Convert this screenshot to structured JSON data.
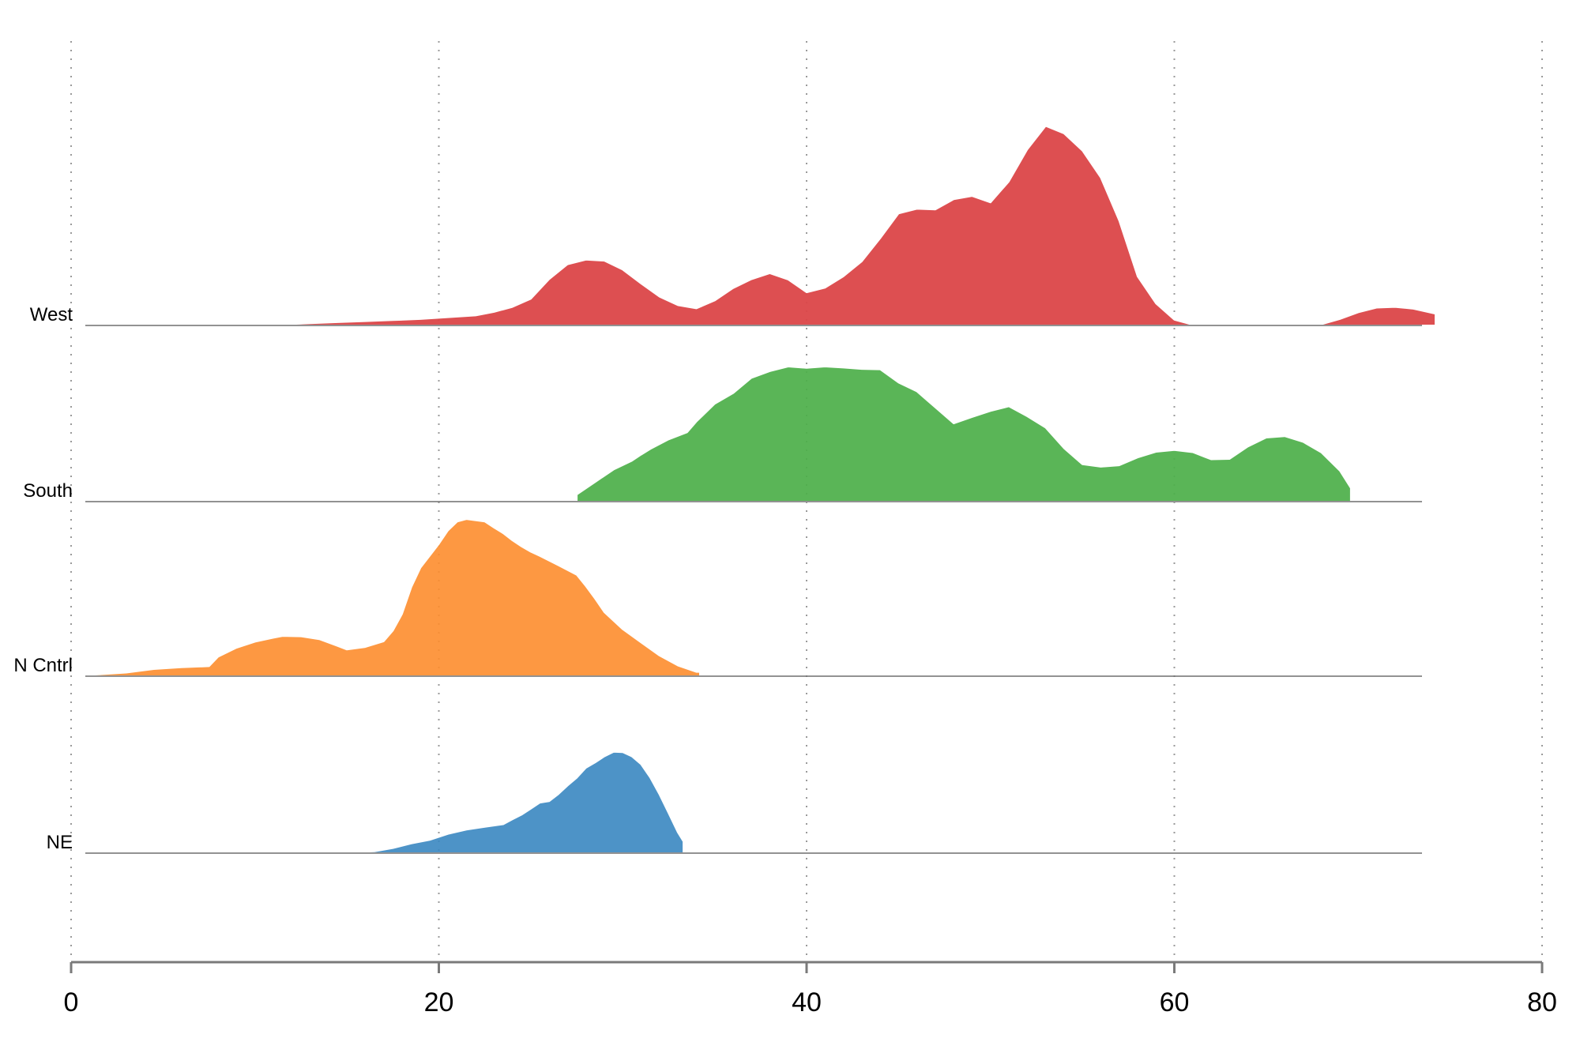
{
  "chart_data": {
    "type": "area",
    "subtype": "ridgeline",
    "title": "",
    "xlabel": "",
    "ylabel": "",
    "xlim": [
      0,
      80
    ],
    "xticks": [
      0,
      20,
      40,
      60,
      80
    ],
    "grid": {
      "x": true,
      "style": "dotted"
    },
    "legend": "none",
    "series": [
      {
        "name": "NE",
        "color": "#3a87c1",
        "opacity": 0.9,
        "x": [
          15,
          16.5,
          17.5,
          18.5,
          19.5,
          20.5,
          21.5,
          22.5,
          23.5,
          24,
          24.5,
          25,
          25.5,
          26,
          26.5,
          27,
          27.5,
          28,
          28.5,
          29,
          29.5,
          30,
          30.5,
          31,
          31.5,
          32,
          32.5,
          33,
          33.3,
          33.3
        ],
        "y": [
          0.02,
          0.05,
          0.14,
          0.27,
          0.37,
          0.54,
          0.66,
          0.74,
          0.81,
          0.95,
          1.08,
          1.25,
          1.42,
          1.46,
          1.66,
          1.9,
          2.12,
          2.4,
          2.55,
          2.72,
          2.85,
          2.84,
          2.72,
          2.5,
          2.12,
          1.65,
          1.12,
          0.58,
          0.33,
          0
        ]
      },
      {
        "name": "N Cntrl",
        "color": "#fd8d2e",
        "opacity": 0.9,
        "x": [
          0.5,
          1.5,
          3,
          4.5,
          6,
          7.5,
          8,
          9,
          10,
          11,
          11.5,
          12.5,
          13.5,
          14.5,
          15,
          16,
          17,
          17.5,
          18,
          18.5,
          19,
          20,
          20.5,
          21,
          21.5,
          22.5,
          23,
          23.5,
          24,
          24.5,
          25,
          25.5,
          26.5,
          27.5,
          28,
          28.5,
          29,
          30,
          31,
          32,
          33,
          34,
          34.2,
          34.2
        ],
        "y": [
          0.02,
          0.05,
          0.1,
          0.2,
          0.25,
          0.28,
          0.55,
          0.8,
          0.97,
          1.08,
          1.13,
          1.12,
          1.04,
          0.85,
          0.75,
          0.82,
          0.98,
          1.28,
          1.75,
          2.5,
          3.05,
          3.72,
          4.1,
          4.35,
          4.42,
          4.35,
          4.18,
          4.02,
          3.82,
          3.65,
          3.5,
          3.38,
          3.12,
          2.85,
          2.53,
          2.18,
          1.8,
          1.32,
          0.95,
          0.58,
          0.3,
          0.12,
          0.12,
          0
        ]
      },
      {
        "name": "South",
        "color": "#4daf4a",
        "opacity": 0.93,
        "x": [
          27.5,
          28.5,
          29.5,
          30.5,
          31,
          31.5,
          32.5,
          33.5,
          34,
          35,
          36,
          37,
          38,
          39,
          40,
          41,
          42,
          43,
          44,
          45,
          46,
          47,
          48,
          49,
          50,
          51,
          52,
          53,
          54,
          55,
          56,
          57,
          58,
          59,
          60,
          61,
          62,
          63,
          64,
          65,
          66,
          67,
          68,
          69,
          69.6,
          69.6
        ],
        "y": [
          0.2,
          0.55,
          0.9,
          1.15,
          1.32,
          1.48,
          1.75,
          1.95,
          2.25,
          2.75,
          3.05,
          3.48,
          3.67,
          3.8,
          3.76,
          3.8,
          3.77,
          3.73,
          3.72,
          3.35,
          3.1,
          2.65,
          2.2,
          2.38,
          2.55,
          2.68,
          2.4,
          2.08,
          1.5,
          1.05,
          0.98,
          1.02,
          1.24,
          1.4,
          1.45,
          1.39,
          1.19,
          1.2,
          1.55,
          1.8,
          1.84,
          1.68,
          1.38,
          0.87,
          0.38,
          0
        ]
      },
      {
        "name": "West",
        "color": "#db4648",
        "opacity": 0.95,
        "x": [
          11.5,
          13,
          14.5,
          16,
          17.5,
          19,
          20.5,
          22,
          23,
          24,
          25,
          26,
          27,
          28,
          29,
          30,
          31,
          32,
          33,
          34,
          35,
          36,
          37,
          38,
          39,
          40,
          41,
          42,
          43,
          44,
          45,
          46,
          47,
          48,
          49,
          50,
          51,
          52,
          53,
          54,
          55,
          56,
          57,
          58,
          59,
          60,
          61,
          62,
          64,
          66,
          68,
          69,
          70,
          71,
          72,
          73,
          74.2,
          74.2
        ],
        "y": [
          0.03,
          0.06,
          0.09,
          0.12,
          0.15,
          0.18,
          0.23,
          0.28,
          0.38,
          0.52,
          0.75,
          1.3,
          1.72,
          1.85,
          1.82,
          1.57,
          1.18,
          0.81,
          0.57,
          0.48,
          0.7,
          1.05,
          1.3,
          1.47,
          1.29,
          0.93,
          1.06,
          1.38,
          1.8,
          2.45,
          3.15,
          3.28,
          3.26,
          3.55,
          3.64,
          3.46,
          4.05,
          4.95,
          5.61,
          5.4,
          4.92,
          4.16,
          2.95,
          1.38,
          0.62,
          0.16,
          0.02,
          0,
          0,
          0,
          0.03,
          0.18,
          0.37,
          0.5,
          0.52,
          0.47,
          0.33,
          0
        ]
      }
    ]
  },
  "row_labels": [
    "West",
    "South",
    "N Cntrl",
    "NE"
  ],
  "x_tick_labels": [
    "0",
    "20",
    "40",
    "60",
    "80"
  ]
}
